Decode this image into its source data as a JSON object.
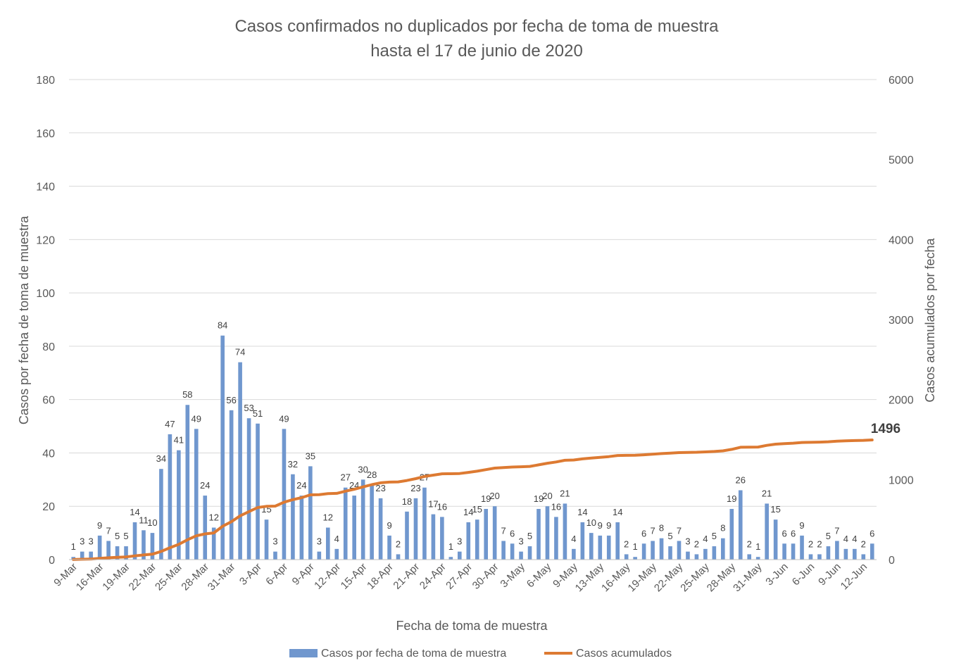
{
  "chart_data": {
    "type": "bar",
    "title_lines": [
      "Casos confirmados no duplicados por fecha de toma de muestra",
      "hasta el 17 de junio de 2020"
    ],
    "xlabel": "Fecha de toma de muestra",
    "ylabel_left": "Casos por fecha de toma de muestra",
    "ylabel_right": "Casos acumulados por fecha",
    "y_left": {
      "min": 0,
      "max": 180,
      "ticks": [
        "0",
        "20",
        "40",
        "60",
        "80",
        "100",
        "120",
        "140",
        "160",
        "180"
      ]
    },
    "y_right": {
      "min": 0,
      "max": 6000,
      "ticks": [
        "0",
        "1000",
        "2000",
        "3000",
        "4000",
        "5000",
        "6000"
      ]
    },
    "x_tick_labels": [
      "9-Mar",
      "16-Mar",
      "19-Mar",
      "22-Mar",
      "25-Mar",
      "28-Mar",
      "31-Mar",
      "3-Apr",
      "6-Apr",
      "9-Apr",
      "12-Apr",
      "15-Apr",
      "18-Apr",
      "21-Apr",
      "24-Apr",
      "27-Apr",
      "30-Apr",
      "3-May",
      "6-May",
      "9-May",
      "13-May",
      "16-May",
      "19-May",
      "22-May",
      "25-May",
      "28-May",
      "31-May",
      "3-Jun",
      "6-Jun",
      "9-Jun",
      "12-Jun"
    ],
    "x_tick_index": [
      0,
      3,
      6,
      9,
      12,
      15,
      18,
      21,
      24,
      27,
      30,
      33,
      36,
      39,
      42,
      45,
      48,
      51,
      54,
      57,
      60,
      63,
      66,
      69,
      72,
      75,
      78,
      81,
      84,
      87,
      90
    ],
    "daily": [
      1,
      3,
      3,
      9,
      7,
      5,
      5,
      14,
      11,
      10,
      34,
      47,
      41,
      58,
      49,
      24,
      12,
      84,
      56,
      74,
      53,
      51,
      15,
      3,
      49,
      32,
      24,
      35,
      3,
      12,
      4,
      27,
      24,
      30,
      28,
      23,
      9,
      2,
      18,
      23,
      27,
      17,
      16,
      1,
      3,
      14,
      15,
      19,
      20,
      7,
      6,
      3,
      5,
      19,
      20,
      16,
      21,
      4,
      14,
      10,
      9,
      9,
      14,
      2,
      1,
      6,
      7,
      8,
      5,
      7,
      3,
      2,
      4,
      5,
      8,
      19,
      26,
      2,
      1,
      21,
      15,
      6,
      6,
      9,
      2,
      2,
      5,
      7,
      4,
      4,
      2,
      6
    ],
    "cumulative": [
      1,
      4,
      7,
      16,
      23,
      28,
      33,
      47,
      58,
      68,
      102,
      149,
      190,
      248,
      297,
      321,
      333,
      417,
      473,
      547,
      600,
      651,
      666,
      669,
      718,
      750,
      774,
      809,
      812,
      824,
      828,
      855,
      879,
      909,
      937,
      960,
      969,
      971,
      989,
      1012,
      1039,
      1056,
      1072,
      1073,
      1076,
      1090,
      1105,
      1124,
      1144,
      1151,
      1157,
      1160,
      1165,
      1184,
      1204,
      1220,
      1241,
      1245,
      1259,
      1269,
      1278,
      1287,
      1301,
      1303,
      1304,
      1310,
      1317,
      1325,
      1330,
      1337,
      1340,
      1342,
      1346,
      1351,
      1359,
      1378,
      1404,
      1406,
      1407,
      1428,
      1443,
      1449,
      1455,
      1464,
      1466,
      1468,
      1473,
      1480,
      1484,
      1488,
      1490,
      1496
    ],
    "final_label": "1496",
    "series": [
      {
        "name": "Casos por fecha de toma de muestra",
        "color": "#7097CE"
      },
      {
        "name": "Casos acumulados",
        "color": "#DD7A32"
      }
    ],
    "legend_position": "bottom",
    "grid": true
  }
}
